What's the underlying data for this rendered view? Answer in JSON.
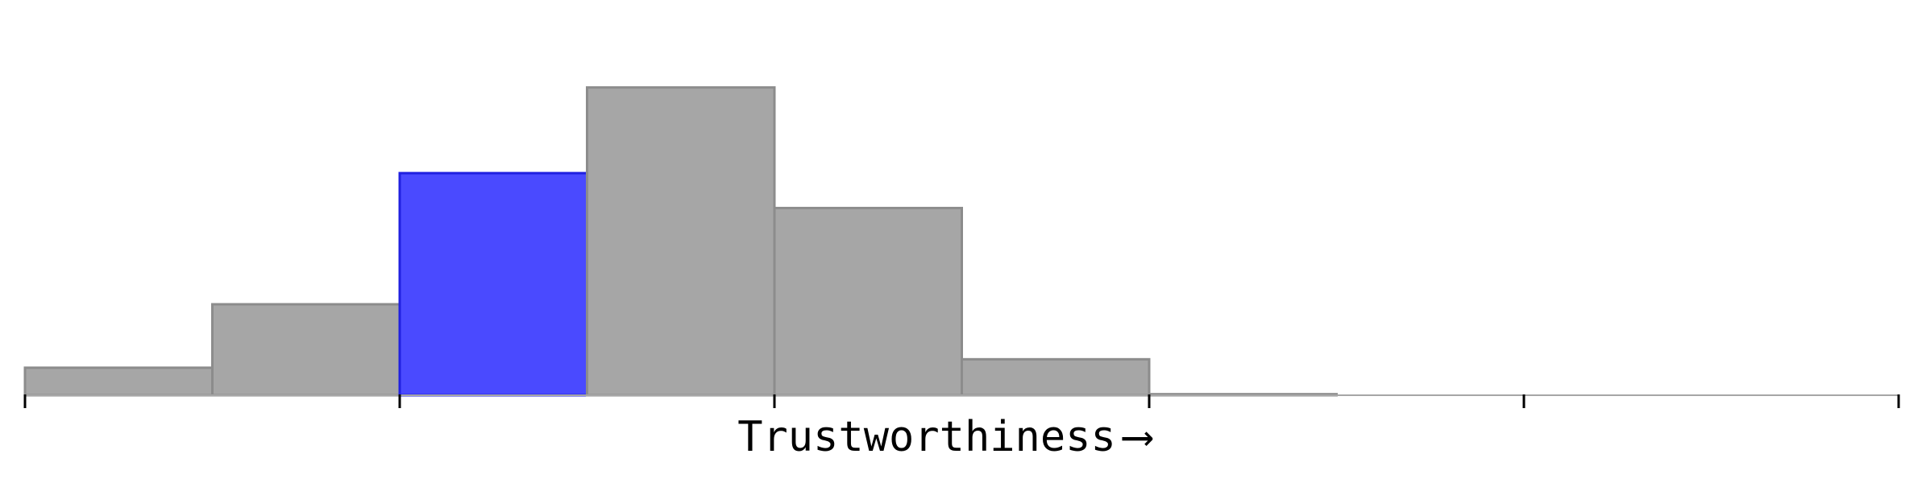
{
  "chart_data": {
    "type": "bar",
    "title": "",
    "xlabel": "Trustworthiness",
    "xlabel_arrow": "⟶",
    "ylabel": "",
    "bin_count": 10,
    "values": [
      2.6,
      8.6,
      21.0,
      29.1,
      17.7,
      3.4,
      0.1,
      0.0,
      0.0,
      0.0
    ],
    "highlight_index": 2,
    "ylim": [
      0,
      36
    ],
    "major_ticks_every_bins": 2,
    "grid": false,
    "legend": "none",
    "colors": {
      "bar_fill": "#a6a6a6",
      "bar_stroke": "#8c8c8c",
      "highlight_fill": "#4a4aff",
      "highlight_stroke": "#2020e0",
      "axis": "#000000",
      "baseline": "#a6a6a6",
      "text": "#000000"
    }
  }
}
